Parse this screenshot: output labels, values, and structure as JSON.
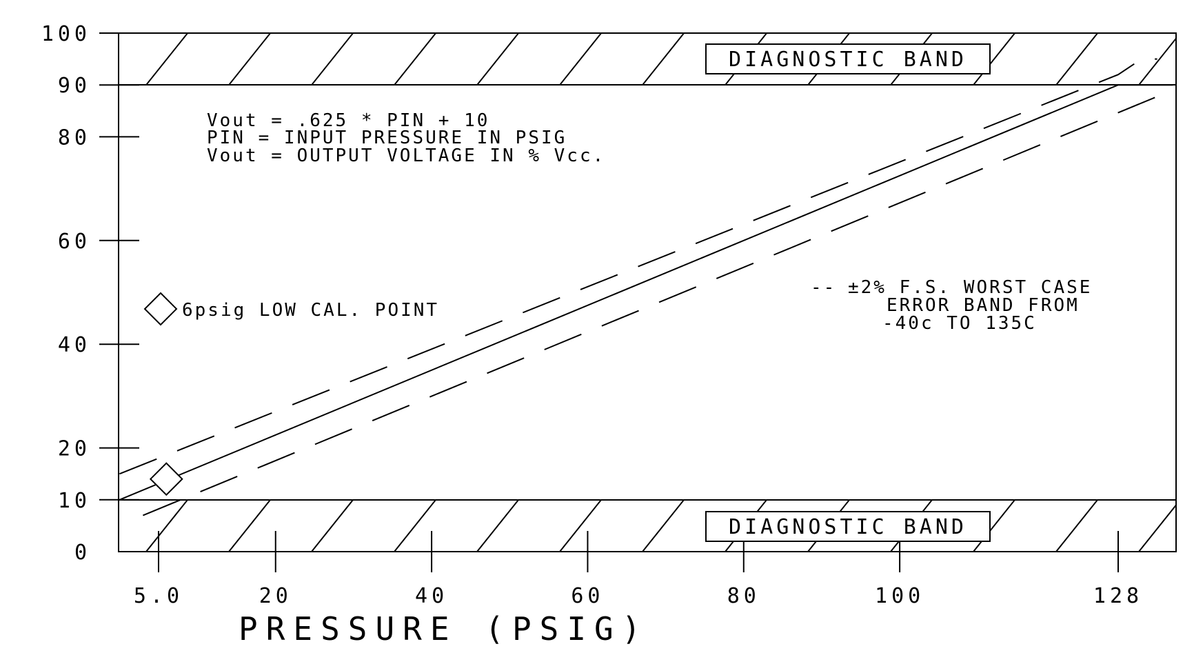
{
  "chart_data": {
    "type": "line",
    "title": "",
    "xlabel": "PRESSURE (PSIG)",
    "ylabel": "",
    "xlim": [
      0,
      135
    ],
    "ylim": [
      0,
      100
    ],
    "grid": false,
    "x_ticks": [
      {
        "value": 5,
        "label": "5.0"
      },
      {
        "value": 20,
        "label": "20"
      },
      {
        "value": 40,
        "label": "40"
      },
      {
        "value": 60,
        "label": "60"
      },
      {
        "value": 80,
        "label": "80"
      },
      {
        "value": 100,
        "label": "100"
      },
      {
        "value": 128,
        "label": "128"
      }
    ],
    "y_ticks": [
      {
        "value": 0,
        "label": "0"
      },
      {
        "value": 10,
        "label": "10"
      },
      {
        "value": 20,
        "label": "20"
      },
      {
        "value": 40,
        "label": "40"
      },
      {
        "value": 60,
        "label": "60"
      },
      {
        "value": 80,
        "label": "80"
      },
      {
        "value": 90,
        "label": "90"
      },
      {
        "value": 100,
        "label": "100"
      }
    ],
    "series": [
      {
        "style": "solid",
        "x": [
          0,
          128,
          135
        ],
        "y": [
          10,
          90,
          90
        ]
      },
      {
        "style": "dashed",
        "x": [
          0,
          128,
          131,
          133
        ],
        "y": [
          15,
          92,
          95,
          95
        ]
      },
      {
        "style": "dashed",
        "x": [
          3,
          135
        ],
        "y": [
          7,
          89
        ]
      }
    ],
    "bands": [
      {
        "ymin": 90,
        "ymax": 100,
        "label": "DIAGNOSTIC BAND",
        "hatched": true
      },
      {
        "ymin": 0,
        "ymax": 10,
        "label": "DIAGNOSTIC BAND",
        "hatched": true
      }
    ],
    "markers": [
      {
        "x": 6,
        "y": 14,
        "shape": "diamond"
      }
    ],
    "annotations": {
      "formula_lines": [
        "Vout  =  .625 * PIN  +  10",
        "PIN = INPUT PRESSURE IN PSIG",
        "Vout = OUTPUT VOLTAGE IN % Vcc."
      ],
      "cal_point_label": "6psig LOW CAL. POINT",
      "legend_symbol": "--",
      "legend_lines": [
        "±2% F.S. WORST CASE",
        "ERROR BAND FROM",
        "-40c TO 135C"
      ]
    }
  }
}
